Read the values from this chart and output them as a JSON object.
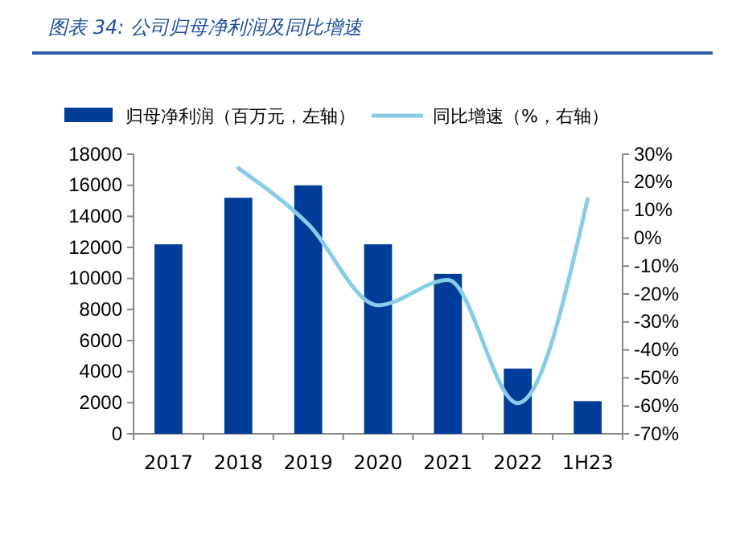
{
  "chart_data": {
    "type": "bar",
    "title": "图表 34:  公司归母净利润及同比增速",
    "categories": [
      "2017",
      "2018",
      "2019",
      "2020",
      "2021",
      "2022",
      "1H23"
    ],
    "series": [
      {
        "name": "归母净利润（百万元，左轴）",
        "color": "#003d99",
        "values": [
          12200,
          15200,
          16000,
          12200,
          10300,
          4200,
          2100
        ]
      },
      {
        "name": "同比增速（%，右轴）",
        "type": "line",
        "axis": "y2",
        "color": "#87cde8",
        "values": [
          null,
          25,
          5,
          -24,
          -15,
          -59,
          14
        ]
      }
    ],
    "ylim": [
      0,
      18000
    ],
    "yticks": [
      0,
      2000,
      4000,
      6000,
      8000,
      10000,
      12000,
      14000,
      16000,
      18000
    ],
    "y2lim": [
      -70,
      30
    ],
    "y2ticks": [
      {
        "value": -70,
        "label": "-70%"
      },
      {
        "value": -60,
        "label": "-60%"
      },
      {
        "value": -50,
        "label": "-50%"
      },
      {
        "value": -40,
        "label": "-40%"
      },
      {
        "value": -30,
        "label": "-30%"
      },
      {
        "value": -20,
        "label": "-20%"
      },
      {
        "value": -10,
        "label": "-10%"
      },
      {
        "value": 0,
        "label": "0%"
      },
      {
        "value": 10,
        "label": "10%"
      },
      {
        "value": 20,
        "label": "20%"
      },
      {
        "value": 30,
        "label": "30%"
      }
    ],
    "legend": "top",
    "grid": false
  }
}
